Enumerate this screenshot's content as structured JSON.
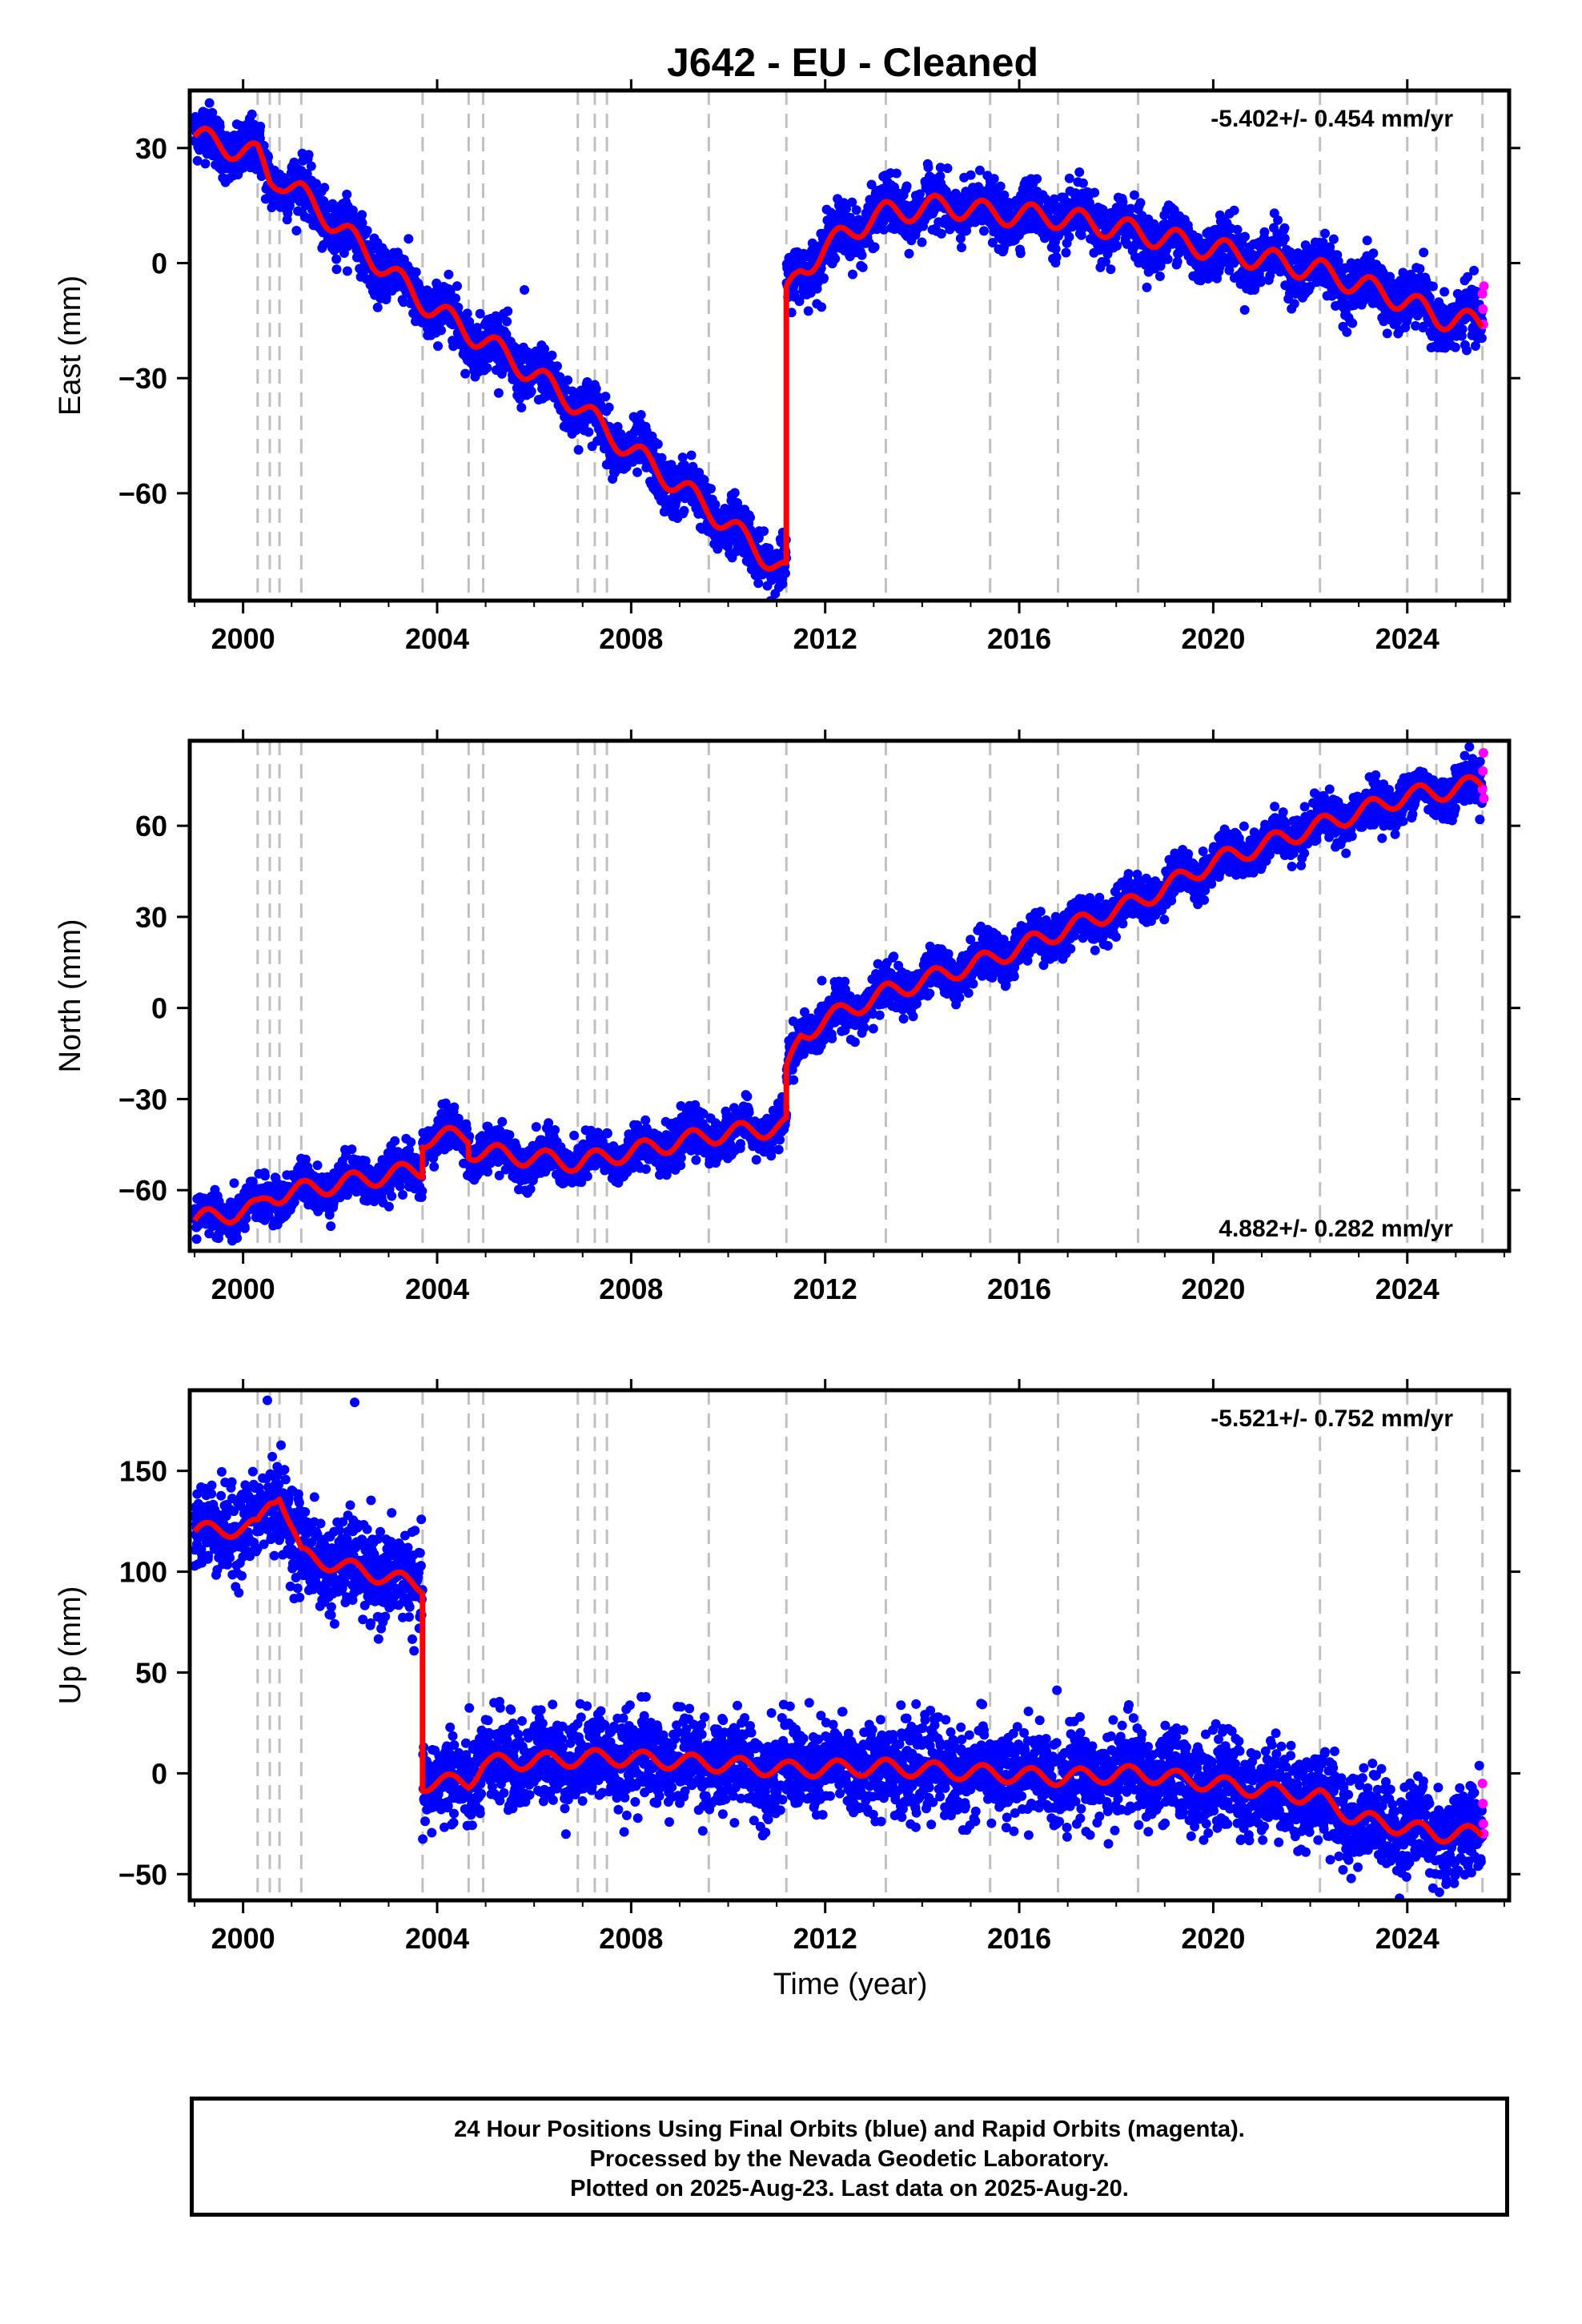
{
  "page": {
    "title": "J642  - EU - Cleaned",
    "xlabel": "Time (year)",
    "footer": [
      "24 Hour Positions Using Final Orbits (blue) and Rapid Orbits (magenta).",
      "Processed by the Nevada Geodetic Laboratory.",
      "Plotted on 2025-Aug-23. Last data on 2025-Aug-20."
    ]
  },
  "colors": {
    "final_orbits": "#0000ff",
    "rapid_orbits": "#ff00ff",
    "model": "#ff0000",
    "event_lines": "#c0c0c0"
  },
  "chart_data": [
    {
      "type": "scatter",
      "panel": "east",
      "ylabel": "East (mm)",
      "rate_text": "-5.402+/- 0.454 mm/yr",
      "rate_position": "top-right",
      "xlim": [
        1998.9,
        2026.1
      ],
      "ylim": [
        -88,
        45
      ],
      "x_ticks": [
        2000,
        2004,
        2008,
        2012,
        2016,
        2020,
        2024
      ],
      "y_ticks": [
        30,
        0,
        -30,
        -60
      ],
      "event_lines_x": [
        2000.3,
        2000.55,
        2000.75,
        2001.2,
        2003.7,
        2004.65,
        2004.95,
        2006.9,
        2007.25,
        2007.5,
        2009.6,
        2011.2,
        2013.25,
        2015.4,
        2016.8,
        2018.45,
        2022.2,
        2024.0,
        2024.6,
        2025.55
      ],
      "model_knots": [
        [
          1999.0,
          33
        ],
        [
          2000.3,
          28
        ],
        [
          2000.55,
          22
        ],
        [
          2000.75,
          22
        ],
        [
          2001.2,
          18
        ],
        [
          2003.7,
          -10
        ],
        [
          2004.65,
          -18
        ],
        [
          2004.95,
          -20
        ],
        [
          2006.9,
          -37
        ],
        [
          2007.25,
          -41
        ],
        [
          2007.5,
          -44
        ],
        [
          2009.6,
          -64
        ],
        [
          2011.2,
          -81
        ],
        [
          2011.2,
          -9
        ],
        [
          2011.5,
          -2
        ],
        [
          2012.0,
          4
        ],
        [
          2013.0,
          12
        ],
        [
          2013.25,
          13
        ],
        [
          2014.5,
          15
        ],
        [
          2015.4,
          13
        ],
        [
          2016.8,
          12
        ],
        [
          2018.45,
          8
        ],
        [
          2019.5,
          5
        ],
        [
          2022.2,
          -2
        ],
        [
          2024.0,
          -10
        ],
        [
          2024.6,
          -14
        ],
        [
          2025.55,
          -16
        ]
      ],
      "model_seasonal_amplitude": 3,
      "scatter_spread": 3.5,
      "magenta_points": [
        [
          2025.55,
          -8
        ],
        [
          2025.56,
          -12
        ],
        [
          2025.57,
          -16
        ],
        [
          2025.58,
          -6
        ]
      ],
      "outlier_points": [
        [
          2005.8,
          -7
        ]
      ]
    },
    {
      "type": "scatter",
      "panel": "north",
      "ylabel": "North (mm)",
      "rate_text": "4.882+/- 0.282 mm/yr",
      "rate_position": "bottom-right",
      "xlim": [
        1998.9,
        2026.1
      ],
      "ylim": [
        -80,
        88
      ],
      "x_ticks": [
        2000,
        2004,
        2008,
        2012,
        2016,
        2020,
        2024
      ],
      "y_ticks": [
        60,
        30,
        0,
        -30,
        -60
      ],
      "event_lines_x": [
        2000.3,
        2000.55,
        2000.75,
        2001.2,
        2003.7,
        2004.65,
        2004.95,
        2006.9,
        2007.25,
        2007.5,
        2009.6,
        2011.2,
        2013.25,
        2015.4,
        2016.8,
        2018.45,
        2022.2,
        2024.0,
        2024.6,
        2025.55
      ],
      "model_knots": [
        [
          1999.0,
          -70
        ],
        [
          2000.3,
          -66
        ],
        [
          2000.55,
          -62
        ],
        [
          2001.2,
          -60
        ],
        [
          2003.7,
          -53
        ],
        [
          2003.7,
          -43
        ],
        [
          2004.65,
          -42
        ],
        [
          2004.65,
          -47
        ],
        [
          2006.9,
          -51
        ],
        [
          2009.6,
          -42
        ],
        [
          2011.2,
          -39
        ],
        [
          2011.2,
          -22
        ],
        [
          2011.5,
          -9
        ],
        [
          2012.0,
          -4
        ],
        [
          2013.25,
          5
        ],
        [
          2015.4,
          16
        ],
        [
          2016.8,
          25
        ],
        [
          2018.45,
          35
        ],
        [
          2020.0,
          48
        ],
        [
          2022.2,
          60
        ],
        [
          2024.0,
          70
        ],
        [
          2024.6,
          71
        ],
        [
          2025.55,
          74
        ]
      ],
      "model_seasonal_amplitude": 3,
      "scatter_spread": 3.5,
      "magenta_points": [
        [
          2025.55,
          72
        ],
        [
          2025.56,
          78
        ],
        [
          2025.57,
          84
        ],
        [
          2025.58,
          69
        ]
      ],
      "outlier_points": []
    },
    {
      "type": "scatter",
      "panel": "up",
      "ylabel": "Up (mm)",
      "rate_text": "-5.521+/- 0.752 mm/yr",
      "rate_position": "top-right",
      "xlim": [
        1998.9,
        2026.1
      ],
      "ylim": [
        -63,
        190
      ],
      "x_ticks": [
        2000,
        2004,
        2008,
        2012,
        2016,
        2020,
        2024
      ],
      "y_ticks": [
        150,
        100,
        50,
        0,
        -50
      ],
      "event_lines_x": [
        2000.3,
        2000.55,
        2000.75,
        2001.2,
        2003.7,
        2004.65,
        2004.95,
        2006.9,
        2007.25,
        2007.5,
        2009.6,
        2011.2,
        2013.25,
        2015.4,
        2016.8,
        2018.45,
        2022.2,
        2024.0,
        2024.6,
        2025.55
      ],
      "model_knots": [
        [
          1999.0,
          120
        ],
        [
          2000.3,
          122
        ],
        [
          2000.55,
          135
        ],
        [
          2000.75,
          140
        ],
        [
          2001.2,
          108
        ],
        [
          2002.5,
          100
        ],
        [
          2003.7,
          93
        ],
        [
          2003.7,
          -5
        ],
        [
          2004.65,
          -4
        ],
        [
          2004.95,
          5
        ],
        [
          2007.5,
          8
        ],
        [
          2009.6,
          5
        ],
        [
          2011.2,
          2
        ],
        [
          2013.25,
          3
        ],
        [
          2015.4,
          0
        ],
        [
          2016.8,
          -2
        ],
        [
          2018.45,
          0
        ],
        [
          2020.0,
          -5
        ],
        [
          2022.2,
          -12
        ],
        [
          2022.9,
          -22
        ],
        [
          2024.0,
          -27
        ],
        [
          2024.6,
          -30
        ],
        [
          2025.55,
          -30
        ]
      ],
      "model_seasonal_amplitude": 4,
      "scatter_spread": 11,
      "magenta_points": [
        [
          2025.55,
          -5
        ],
        [
          2025.56,
          -15
        ],
        [
          2025.57,
          -25
        ],
        [
          2025.58,
          -30
        ]
      ],
      "outlier_points": [
        [
          2000.5,
          185
        ],
        [
          2002.3,
          184
        ],
        [
          2024.8,
          -55
        ]
      ]
    }
  ]
}
